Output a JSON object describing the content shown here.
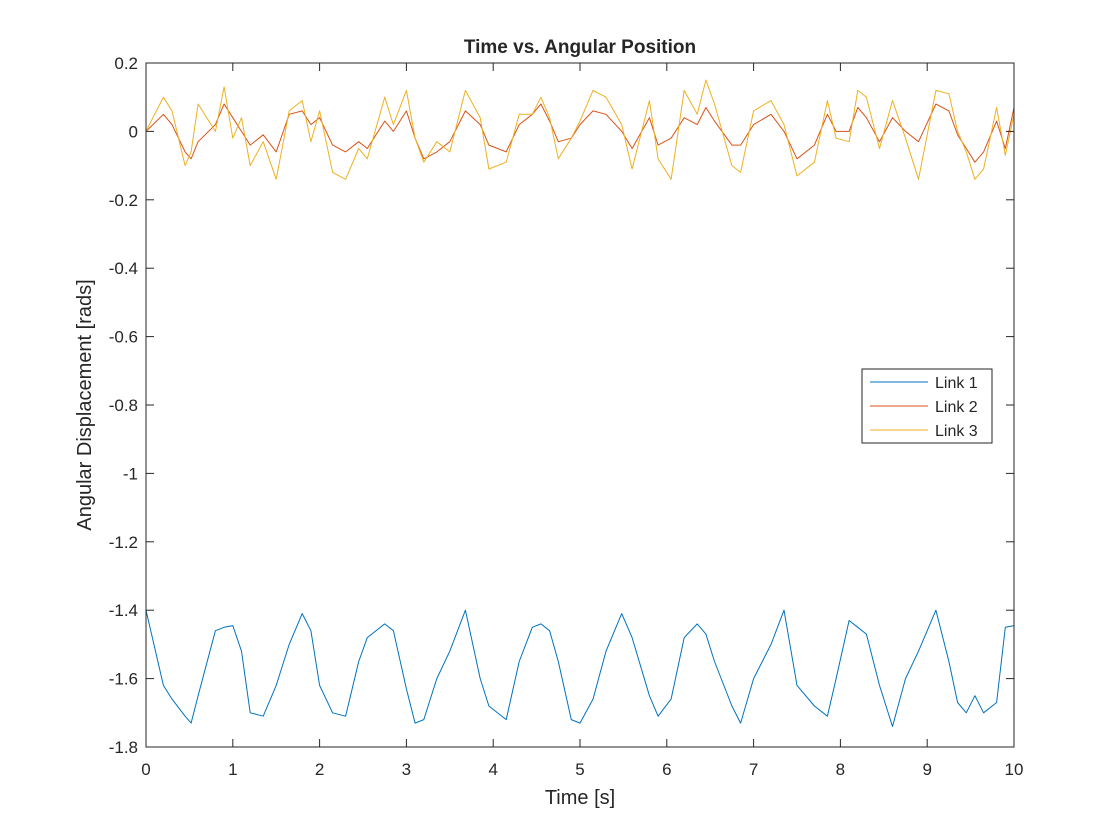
{
  "chart_data": {
    "type": "line",
    "title": "Time vs. Angular Position",
    "xlabel": "Time [s]",
    "ylabel": "Angular Displacement [rads]",
    "xlim": [
      0,
      10
    ],
    "ylim": [
      -1.8,
      0.2
    ],
    "xticks": [
      0,
      1,
      2,
      3,
      4,
      5,
      6,
      7,
      8,
      9,
      10
    ],
    "xtick_labels": [
      "0",
      "1",
      "2",
      "3",
      "4",
      "5",
      "6",
      "7",
      "8",
      "9",
      "10"
    ],
    "yticks": [
      0.2,
      0,
      -0.2,
      -0.4,
      -0.6,
      -0.8,
      -1,
      -1.2,
      -1.4,
      -1.6,
      -1.8
    ],
    "ytick_labels": [
      "0.2",
      "0",
      "-0.2",
      "-0.4",
      "-0.6",
      "-0.8",
      "-1",
      "-1.2",
      "-1.4",
      "-1.6",
      "-1.8"
    ],
    "grid": false,
    "legend_position": "right",
    "x": [
      0,
      0.2,
      0.3,
      0.45,
      0.52,
      0.6,
      0.8,
      0.9,
      1.0,
      1.1,
      1.2,
      1.35,
      1.5,
      1.65,
      1.8,
      1.9,
      2.0,
      2.15,
      2.3,
      2.45,
      2.55,
      2.75,
      2.85,
      3.0,
      3.1,
      3.2,
      3.35,
      3.5,
      3.68,
      3.85,
      3.95,
      4.15,
      4.3,
      4.45,
      4.55,
      4.65,
      4.75,
      4.9,
      5.0,
      5.15,
      5.3,
      5.48,
      5.6,
      5.8,
      5.9,
      6.05,
      6.2,
      6.35,
      6.45,
      6.55,
      6.75,
      6.85,
      7.0,
      7.2,
      7.35,
      7.5,
      7.7,
      7.85,
      7.95,
      8.1,
      8.2,
      8.3,
      8.45,
      8.6,
      8.75,
      8.9,
      9.1,
      9.25,
      9.35,
      9.45,
      9.55,
      9.65,
      9.8,
      9.9,
      10.0
    ],
    "series": [
      {
        "name": "Link 1",
        "color": "#0072BD",
        "values": [
          -1.4,
          -1.62,
          -1.66,
          -1.71,
          -1.73,
          -1.65,
          -1.46,
          -1.45,
          -1.445,
          -1.52,
          -1.7,
          -1.71,
          -1.62,
          -1.5,
          -1.41,
          -1.46,
          -1.62,
          -1.7,
          -1.71,
          -1.55,
          -1.48,
          -1.44,
          -1.46,
          -1.63,
          -1.73,
          -1.72,
          -1.6,
          -1.52,
          -1.4,
          -1.6,
          -1.68,
          -1.72,
          -1.55,
          -1.45,
          -1.44,
          -1.46,
          -1.55,
          -1.72,
          -1.73,
          -1.66,
          -1.52,
          -1.41,
          -1.48,
          -1.65,
          -1.71,
          -1.66,
          -1.48,
          -1.44,
          -1.47,
          -1.55,
          -1.68,
          -1.73,
          -1.6,
          -1.5,
          -1.4,
          -1.62,
          -1.68,
          -1.71,
          -1.6,
          -1.43,
          -1.45,
          -1.47,
          -1.62,
          -1.74,
          -1.6,
          -1.52,
          -1.4,
          -1.55,
          -1.67,
          -1.7,
          -1.65,
          -1.7,
          -1.67,
          -1.45,
          -1.445
        ]
      },
      {
        "name": "Link 2",
        "color": "#D95319",
        "values": [
          0.0,
          0.05,
          0.02,
          -0.06,
          -0.08,
          -0.03,
          0.02,
          0.08,
          0.04,
          0.0,
          -0.04,
          -0.01,
          -0.06,
          0.05,
          0.06,
          0.02,
          0.04,
          -0.04,
          -0.06,
          -0.03,
          -0.05,
          0.03,
          0.0,
          0.06,
          -0.02,
          -0.08,
          -0.06,
          -0.03,
          0.06,
          0.02,
          -0.04,
          -0.06,
          0.02,
          0.05,
          0.08,
          0.03,
          -0.03,
          -0.02,
          0.02,
          0.06,
          0.05,
          0.0,
          -0.05,
          0.04,
          -0.04,
          -0.02,
          0.04,
          0.02,
          0.07,
          0.03,
          -0.04,
          -0.04,
          0.02,
          0.05,
          0.0,
          -0.08,
          -0.04,
          0.05,
          0.0,
          0.0,
          0.07,
          0.04,
          -0.03,
          0.04,
          0.0,
          -0.03,
          0.08,
          0.06,
          -0.01,
          -0.05,
          -0.09,
          -0.06,
          0.03,
          -0.05,
          0.07
        ]
      },
      {
        "name": "Link 3",
        "color": "#EDB120",
        "values": [
          0.0,
          0.1,
          0.06,
          -0.1,
          -0.06,
          0.08,
          0.0,
          0.13,
          -0.02,
          0.04,
          -0.1,
          -0.03,
          -0.14,
          0.06,
          0.09,
          -0.03,
          0.06,
          -0.12,
          -0.14,
          -0.05,
          -0.08,
          0.1,
          0.02,
          0.12,
          -0.02,
          -0.09,
          -0.03,
          -0.06,
          0.12,
          0.04,
          -0.11,
          -0.09,
          0.05,
          0.05,
          0.1,
          0.04,
          -0.08,
          -0.02,
          0.03,
          0.12,
          0.1,
          0.02,
          -0.11,
          0.09,
          -0.08,
          -0.14,
          0.12,
          0.05,
          0.15,
          0.08,
          -0.1,
          -0.12,
          0.06,
          0.09,
          0.02,
          -0.13,
          -0.09,
          0.09,
          -0.02,
          -0.03,
          0.12,
          0.1,
          -0.05,
          0.09,
          -0.02,
          -0.14,
          0.12,
          0.11,
          0.0,
          -0.06,
          -0.14,
          -0.11,
          0.07,
          -0.07,
          0.05
        ]
      }
    ]
  }
}
